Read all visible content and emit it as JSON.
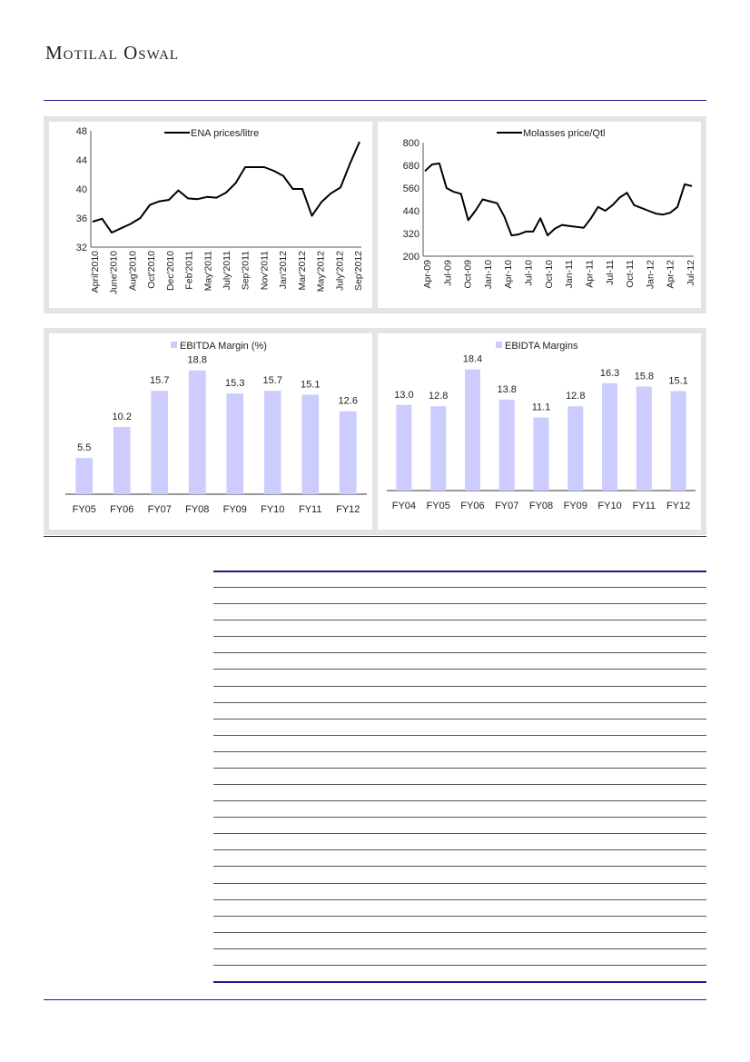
{
  "header": {
    "brand": "Motilal Oswal"
  },
  "chart_data": [
    {
      "type": "line",
      "title": "",
      "legend": "ENA prices/litre",
      "ylim": [
        32,
        48
      ],
      "yticks": [
        32,
        36,
        40,
        44,
        48
      ],
      "xticks": [
        "April'2010",
        "June'2010",
        "Aug'2010",
        "Oct'2010",
        "Dec'2010",
        "Feb'2011",
        "May'2011",
        "July'2011",
        "Sep'2011",
        "Nov'2011",
        "Jan'2012",
        "Mar'2012",
        "May'2012",
        "July'2012",
        "Sep'2012"
      ],
      "values": [
        35.5,
        35.9,
        34.0,
        34.6,
        35.2,
        36.0,
        37.8,
        38.3,
        38.5,
        39.8,
        38.7,
        38.6,
        38.9,
        38.8,
        39.5,
        40.8,
        43.0,
        43.0,
        43.0,
        42.5,
        41.8,
        40.0,
        40.0,
        36.3,
        38.2,
        39.4,
        40.2,
        43.5,
        46.5
      ]
    },
    {
      "type": "line",
      "title": "",
      "legend": "Molasses price/Qtl",
      "ylim": [
        200,
        800
      ],
      "yticks": [
        200,
        320,
        440,
        560,
        680,
        800
      ],
      "xticks": [
        "Apr-09",
        "Jul-09",
        "Oct-09",
        "Jan-10",
        "Apr-10",
        "Jul-10",
        "Oct-10",
        "Jan-11",
        "Apr-11",
        "Jul-11",
        "Oct-11",
        "Jan-12",
        "Apr-12",
        "Jul-12"
      ],
      "values": [
        650,
        685,
        690,
        560,
        540,
        530,
        390,
        440,
        500,
        490,
        480,
        410,
        310,
        315,
        330,
        330,
        400,
        310,
        345,
        365,
        360,
        355,
        350,
        400,
        460,
        440,
        470,
        510,
        535,
        470,
        455,
        440,
        425,
        420,
        430,
        460,
        580,
        570
      ]
    },
    {
      "type": "bar",
      "legend": "EBITDA Margin (%)",
      "categories": [
        "FY05",
        "FY06",
        "FY07",
        "FY08",
        "FY09",
        "FY10",
        "FY11",
        "FY12"
      ],
      "values": [
        5.5,
        10.2,
        15.7,
        18.8,
        15.3,
        15.7,
        15.1,
        12.6
      ],
      "labels": [
        "5.5",
        "10.2",
        "15.7",
        "18.8",
        "15.3",
        "15.7",
        "15.1",
        "12.6"
      ],
      "ylim": [
        0,
        20
      ]
    },
    {
      "type": "bar",
      "legend": "EBIDTA Margins",
      "categories": [
        "FY04",
        "FY05",
        "FY06",
        "FY07",
        "FY08",
        "FY09",
        "FY10",
        "FY11",
        "FY12"
      ],
      "values": [
        13.0,
        12.8,
        18.4,
        13.8,
        11.1,
        12.8,
        16.3,
        15.8,
        15.1
      ],
      "labels": [
        "13.0",
        "12.8",
        "18.4",
        "13.8",
        "11.1",
        "12.8",
        "16.3",
        "15.8",
        "15.1"
      ],
      "ylim": [
        0,
        20
      ]
    }
  ],
  "colors": {
    "bar": "#ccccff",
    "rule": "#1a1a8c",
    "panel": "#e4e4e4"
  }
}
